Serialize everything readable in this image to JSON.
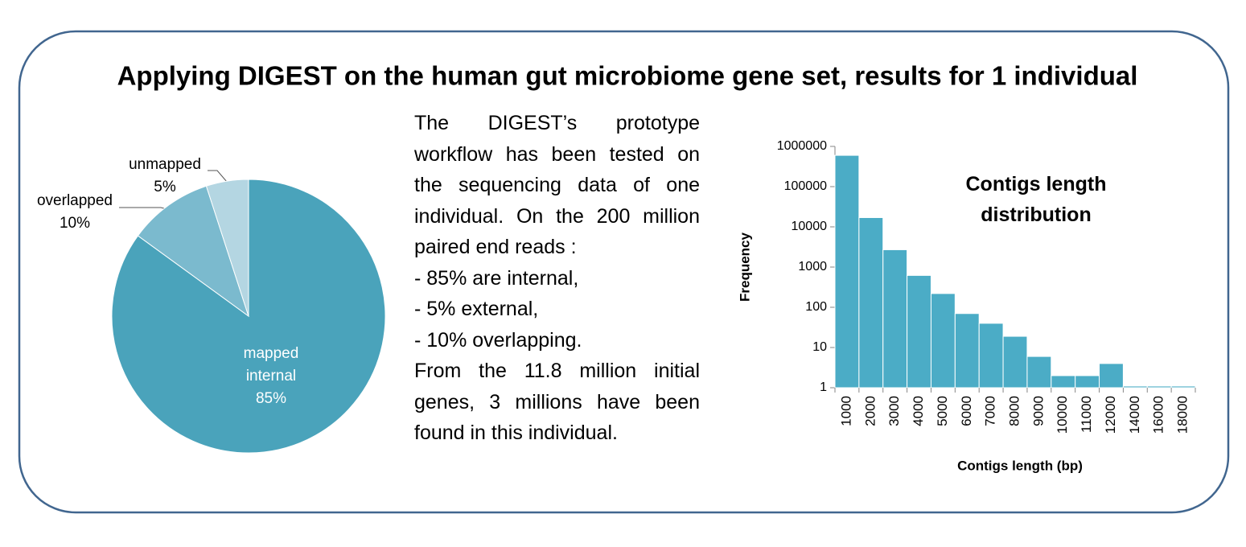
{
  "title": "Applying DIGEST on the human gut microbiome gene set, results for 1 individual",
  "body": {
    "intro": "The DIGEST’s prototype workflow has been tested on the sequencing data of one individual. On the 200 million paired end reads :",
    "items": [
      "- 85% are internal,",
      "- 5% external,",
      "- 10% overlapping."
    ],
    "conclusion": "From the 11.8 million initial genes, 3 millions have been found in this individual."
  },
  "chart_data": [
    {
      "type": "pie",
      "categories": [
        "mapped internal",
        "overlapped",
        "unmapped"
      ],
      "values": [
        85,
        10,
        5
      ],
      "value_labels": [
        "85%",
        "10%",
        "5%"
      ],
      "colors": [
        "#4aa3bb",
        "#7bbace",
        "#b4d6e2"
      ]
    },
    {
      "type": "bar",
      "title": "Contigs length distribution",
      "x_label": "Contigs length (bp)",
      "y_label": "Frequency",
      "categories": [
        "1000",
        "2000",
        "3000",
        "4000",
        "5000",
        "6000",
        "7000",
        "8000",
        "9000",
        "10000",
        "11000",
        "12000",
        "14000",
        "16000",
        "18000"
      ],
      "values": [
        600000,
        17000,
        2700,
        620,
        220,
        70,
        40,
        19,
        6,
        2,
        2,
        4,
        1.1,
        1.1,
        1.1
      ],
      "color": "#4bacc6",
      "log_scale": true,
      "grid": false,
      "ylim": [
        1,
        1000000
      ],
      "yticks": [
        1,
        10,
        100,
        1000,
        10000,
        100000,
        1000000
      ]
    }
  ]
}
